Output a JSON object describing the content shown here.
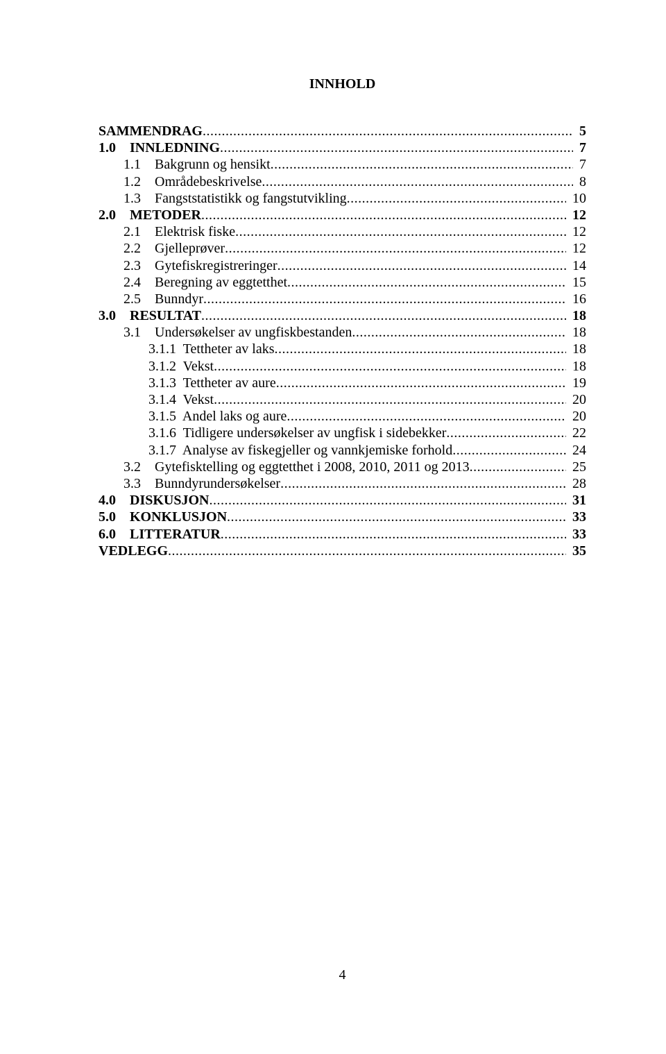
{
  "title": "INNHOLD",
  "toc": [
    {
      "label": "SAMMENDRAG",
      "page": "5",
      "bold": true,
      "indent": 0,
      "gap_after": true
    },
    {
      "label": "1.0    INNLEDNING",
      "page": "7",
      "bold": true,
      "indent": 0
    },
    {
      "label": "1.1    Bakgrunn og hensikt",
      "page": "7",
      "bold": false,
      "indent": 1
    },
    {
      "label": "1.2    Områdebeskrivelse",
      "page": "8",
      "bold": false,
      "indent": 1
    },
    {
      "label": "1.3    Fangststatistikk og fangstutvikling",
      "page": "10",
      "bold": false,
      "indent": 1,
      "gap_after": true
    },
    {
      "label": "2.0    METODER",
      "page": "12",
      "bold": true,
      "indent": 0
    },
    {
      "label": "2.1    Elektrisk fiske",
      "page": "12",
      "bold": false,
      "indent": 1
    },
    {
      "label": "2.2    Gjelleprøver",
      "page": "12",
      "bold": false,
      "indent": 1
    },
    {
      "label": "2.3    Gytefiskregistreringer",
      "page": "14",
      "bold": false,
      "indent": 1
    },
    {
      "label": "2.4    Beregning av eggtetthet",
      "page": "15",
      "bold": false,
      "indent": 1
    },
    {
      "label": "2.5    Bunndyr",
      "page": "16",
      "bold": false,
      "indent": 1,
      "gap_after": true
    },
    {
      "label": "3.0    RESULTAT",
      "page": "18",
      "bold": true,
      "indent": 0
    },
    {
      "label": "3.1    Undersøkelser av ungfiskbestanden",
      "page": "18",
      "bold": false,
      "indent": 1
    },
    {
      "label": "3.1.1  Tettheter av laks",
      "page": "18",
      "bold": false,
      "indent": 2
    },
    {
      "label": "3.1.2  Vekst",
      "page": "18",
      "bold": false,
      "indent": 2
    },
    {
      "label": "3.1.3  Tettheter av aure",
      "page": "19",
      "bold": false,
      "indent": 2
    },
    {
      "label": "3.1.4  Vekst",
      "page": "20",
      "bold": false,
      "indent": 2
    },
    {
      "label": "3.1.5  Andel laks og aure",
      "page": "20",
      "bold": false,
      "indent": 2
    },
    {
      "label": "3.1.6  Tidligere undersøkelser av ungfisk i sidebekker",
      "page": "22",
      "bold": false,
      "indent": 2
    },
    {
      "label": "3.1.7  Analyse av fiskegjeller og vannkjemiske forhold",
      "page": "24",
      "bold": false,
      "indent": 2
    },
    {
      "label": "3.2    Gytefisktelling og eggtetthet i 2008, 2010, 2011 og 2013",
      "page": "25",
      "bold": false,
      "indent": 1
    },
    {
      "label": "3.3    Bunndyrundersøkelser",
      "page": "28",
      "bold": false,
      "indent": 1,
      "gap_after": true
    },
    {
      "label": "4.0    DISKUSJON",
      "page": "31",
      "bold": true,
      "indent": 0,
      "gap_after": true
    },
    {
      "label": "5.0    KONKLUSJON",
      "page": "33",
      "bold": true,
      "indent": 0,
      "gap_after": true
    },
    {
      "label": "6.0    LITTERATUR",
      "page": "33",
      "bold": true,
      "indent": 0,
      "gap_after": true
    },
    {
      "label": "VEDLEGG",
      "page": "35",
      "bold": true,
      "indent": 0
    }
  ],
  "page_number": "4"
}
